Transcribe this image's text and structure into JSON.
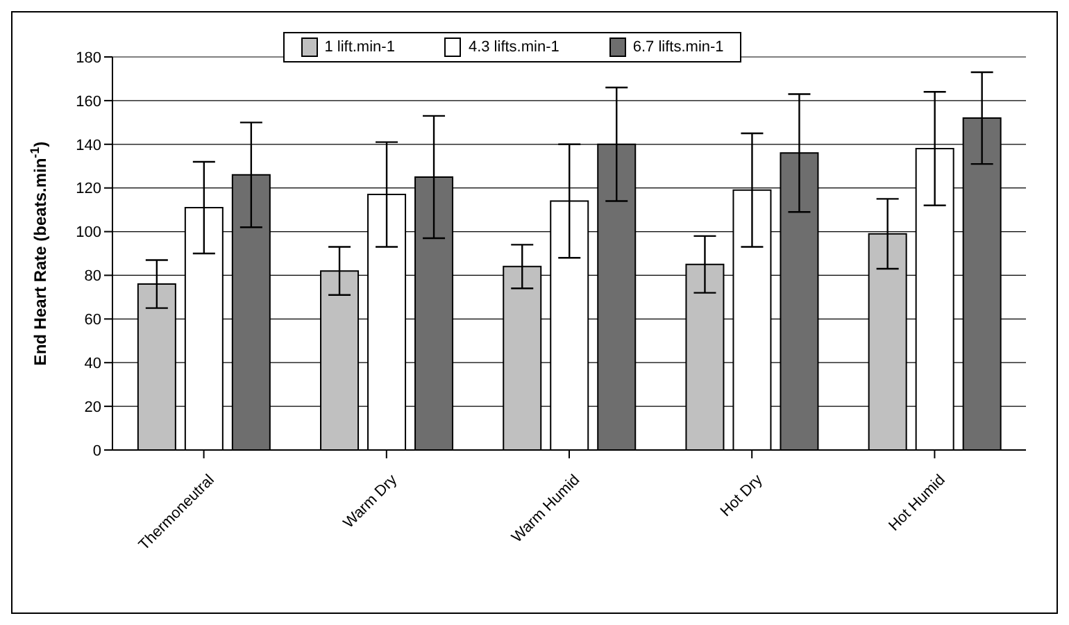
{
  "chart_data": {
    "type": "bar",
    "ylabel": "End Heart Rate (beats.min$^{-1}$)",
    "categories": [
      "Thermoneutral",
      "Warm Dry",
      "Warm Humid",
      "Hot Dry",
      "Hot Humid"
    ],
    "series": [
      {
        "name": "1 lift.min-1",
        "color": "#c0c0c0",
        "values": [
          76,
          82,
          84,
          85,
          99
        ],
        "errors": [
          11,
          11,
          10,
          13,
          16
        ]
      },
      {
        "name": "4.3 lifts.min-1",
        "color": "#ffffff",
        "values": [
          111,
          117,
          114,
          119,
          138
        ],
        "errors": [
          21,
          24,
          26,
          26,
          26
        ]
      },
      {
        "name": "6.7 lifts.min-1",
        "color": "#6e6e6e",
        "values": [
          126,
          125,
          140,
          136,
          152
        ],
        "errors": [
          24,
          28,
          26,
          27,
          21
        ]
      }
    ],
    "ylim": [
      0,
      180
    ],
    "yticks": [
      0,
      20,
      40,
      60,
      80,
      100,
      120,
      140,
      160,
      180
    ],
    "grid": "y",
    "legend": "top"
  }
}
